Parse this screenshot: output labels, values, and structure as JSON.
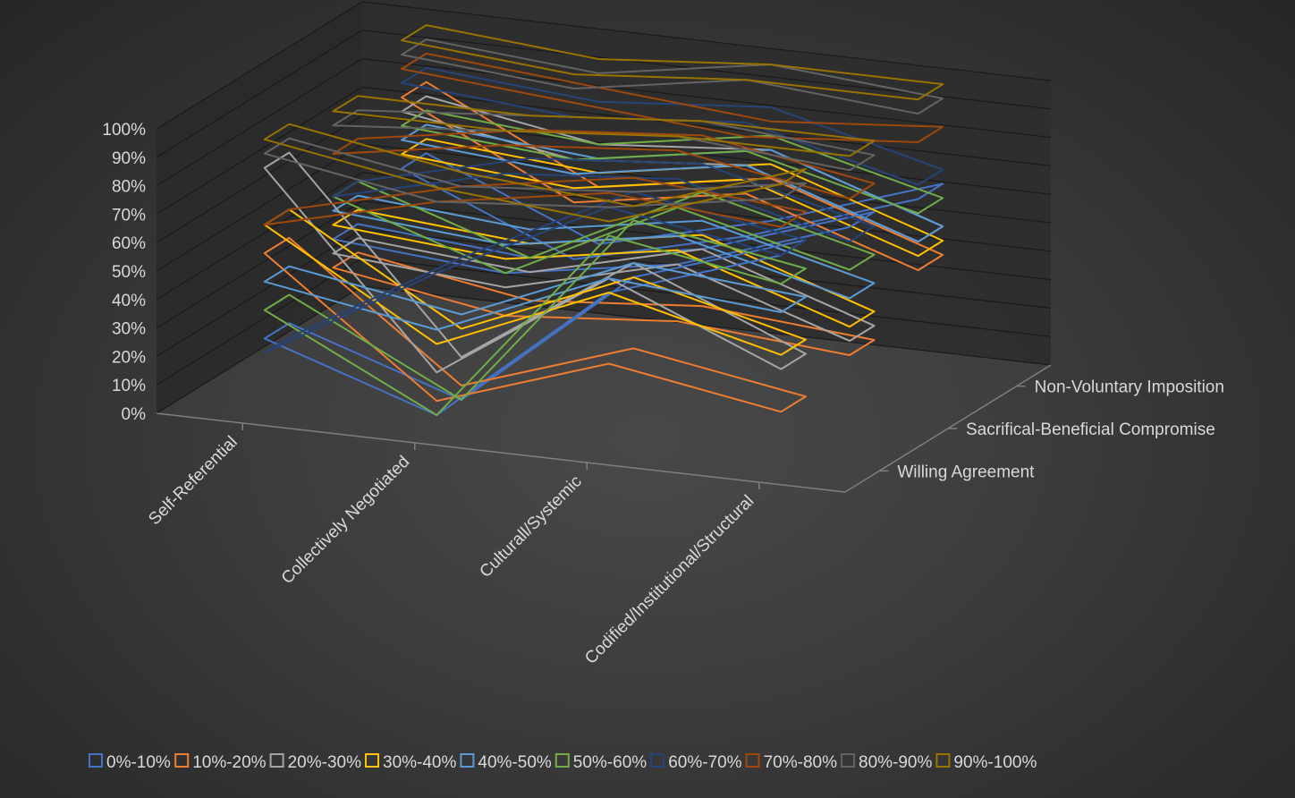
{
  "chart_data": {
    "type": "line",
    "subtype": "3d-line",
    "title": "",
    "y_axis": {
      "ticks": [
        "0%",
        "10%",
        "20%",
        "30%",
        "40%",
        "50%",
        "60%",
        "70%",
        "80%",
        "90%",
        "100%"
      ],
      "ylim": [
        0,
        100
      ],
      "unit": "%"
    },
    "categories": [
      "Self-Referential",
      "Collectively Negotiated",
      "Culturall/Systemic",
      "Codified/Institutional/Structural"
    ],
    "depth_categories": [
      "Willing Agreement",
      "Sacrifical-Beneficial Compromise",
      "Non-Voluntary Imposition"
    ],
    "series": [
      {
        "name": "0%-10%",
        "color": "#4472c4",
        "values": [
          [
            25,
            5,
            55,
            75
          ],
          [
            45,
            40,
            50,
            70
          ],
          [
            55,
            30,
            45,
            65
          ]
        ]
      },
      {
        "name": "10%-20%",
        "color": "#ed7d31",
        "values": [
          [
            55,
            10,
            30,
            20
          ],
          [
            35,
            25,
            30,
            25
          ],
          [
            80,
            50,
            60,
            40
          ]
        ]
      },
      {
        "name": "20%-30%",
        "color": "#a5a5a5",
        "values": [
          [
            85,
            20,
            60,
            35
          ],
          [
            40,
            35,
            50,
            30
          ],
          [
            75,
            65,
            70,
            50
          ]
        ]
      },
      {
        "name": "30%-40%",
        "color": "#ffc000",
        "values": [
          [
            65,
            30,
            55,
            40
          ],
          [
            50,
            45,
            55,
            35
          ],
          [
            60,
            55,
            65,
            45
          ]
        ]
      },
      {
        "name": "40%-50%",
        "color": "#5b9bd5",
        "values": [
          [
            45,
            35,
            60,
            55
          ],
          [
            55,
            50,
            60,
            45
          ],
          [
            65,
            60,
            70,
            50
          ]
        ]
      },
      {
        "name": "50%-60%",
        "color": "#70ad47",
        "values": [
          [
            35,
            5,
            75,
            65
          ],
          [
            60,
            40,
            70,
            55
          ],
          [
            70,
            65,
            75,
            60
          ]
        ]
      },
      {
        "name": "60%-70%",
        "color": "#264478",
        "values": [
          [
            20,
            55,
            85,
            75
          ],
          [
            60,
            75,
            80,
            65
          ],
          [
            85,
            80,
            85,
            70
          ]
        ]
      },
      {
        "name": "70%-80%",
        "color": "#9e480e",
        "values": [
          [
            65,
            80,
            90,
            85
          ],
          [
            75,
            85,
            90,
            80
          ],
          [
            90,
            85,
            80,
            85
          ]
        ]
      },
      {
        "name": "80%-90%",
        "color": "#636363",
        "values": [
          [
            90,
            80,
            85,
            95
          ],
          [
            85,
            90,
            95,
            90
          ],
          [
            95,
            90,
            100,
            95
          ]
        ]
      },
      {
        "name": "90%-100%",
        "color": "#997300",
        "values": [
          [
            95,
            85,
            80,
            100
          ],
          [
            90,
            90,
            95,
            95
          ],
          [
            100,
            95,
            100,
            100
          ]
        ]
      }
    ],
    "legend_position": "bottom",
    "grid": true
  }
}
